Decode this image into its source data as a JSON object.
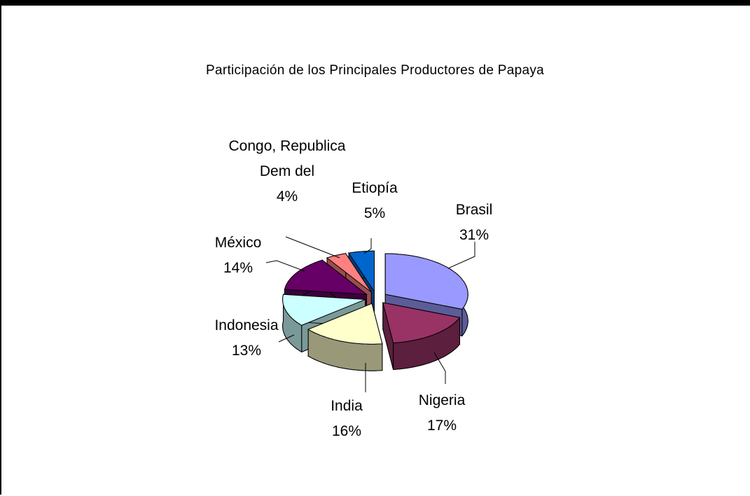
{
  "chart_data": {
    "type": "pie",
    "title": "Participación de los Principales Productores de Papaya",
    "categories": [
      "Brasil",
      "Nigeria",
      "India",
      "Indonesia",
      "México",
      "Congo, Republica Dem del",
      "Etiopía"
    ],
    "values": [
      31,
      17,
      16,
      13,
      14,
      4,
      5
    ],
    "value_labels": [
      "31%",
      "17%",
      "16%",
      "13%",
      "14%",
      "4%",
      "5%"
    ],
    "colors": [
      "#9999ff",
      "#993366",
      "#ffffcc",
      "#ccffff",
      "#660066",
      "#ff8080",
      "#0066cc"
    ]
  }
}
